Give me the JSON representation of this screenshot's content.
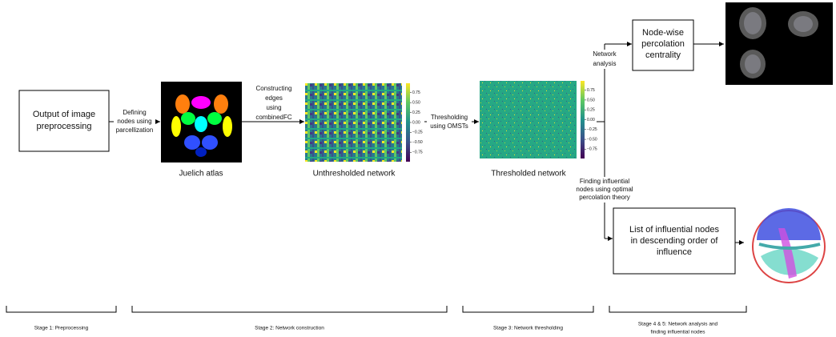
{
  "nodes": [
    {
      "lines": [
        "Output of image",
        "preprocessing"
      ]
    },
    {
      "lines": [
        "Node-wise",
        "percolation",
        "centrality"
      ]
    },
    {
      "lines": [
        "List of influential nodes",
        "in descending order of",
        "influence"
      ]
    }
  ],
  "edges": [
    {
      "lines": [
        "Defining",
        "nodes using",
        "parcellization"
      ]
    },
    {
      "lines": [
        "Constructing",
        "edges",
        "using",
        "combinedFC"
      ]
    },
    {
      "lines": [
        "Thresholding",
        "using OMSTs"
      ]
    },
    {
      "lines": [
        "Network",
        "analysis"
      ]
    },
    {
      "lines": [
        "Finding influential",
        "nodes using optimal",
        "percolation theory"
      ]
    }
  ],
  "images": [
    "Juelich atlas",
    "Unthresholded network",
    "Thresholded network"
  ],
  "colorbar_ticks": [
    "0.75",
    "0.50",
    "0.25",
    "0.00",
    "−0.25",
    "−0.50",
    "−0.75"
  ],
  "stages": [
    {
      "lines": [
        "Stage 1: Preprocessing"
      ]
    },
    {
      "lines": [
        "Stage 2: Network construction"
      ]
    },
    {
      "lines": [
        "Stage 3: Network thresholding"
      ]
    },
    {
      "lines": [
        "Stage 4 & 5: Network analysis and",
        "finding influential nodes"
      ]
    }
  ]
}
